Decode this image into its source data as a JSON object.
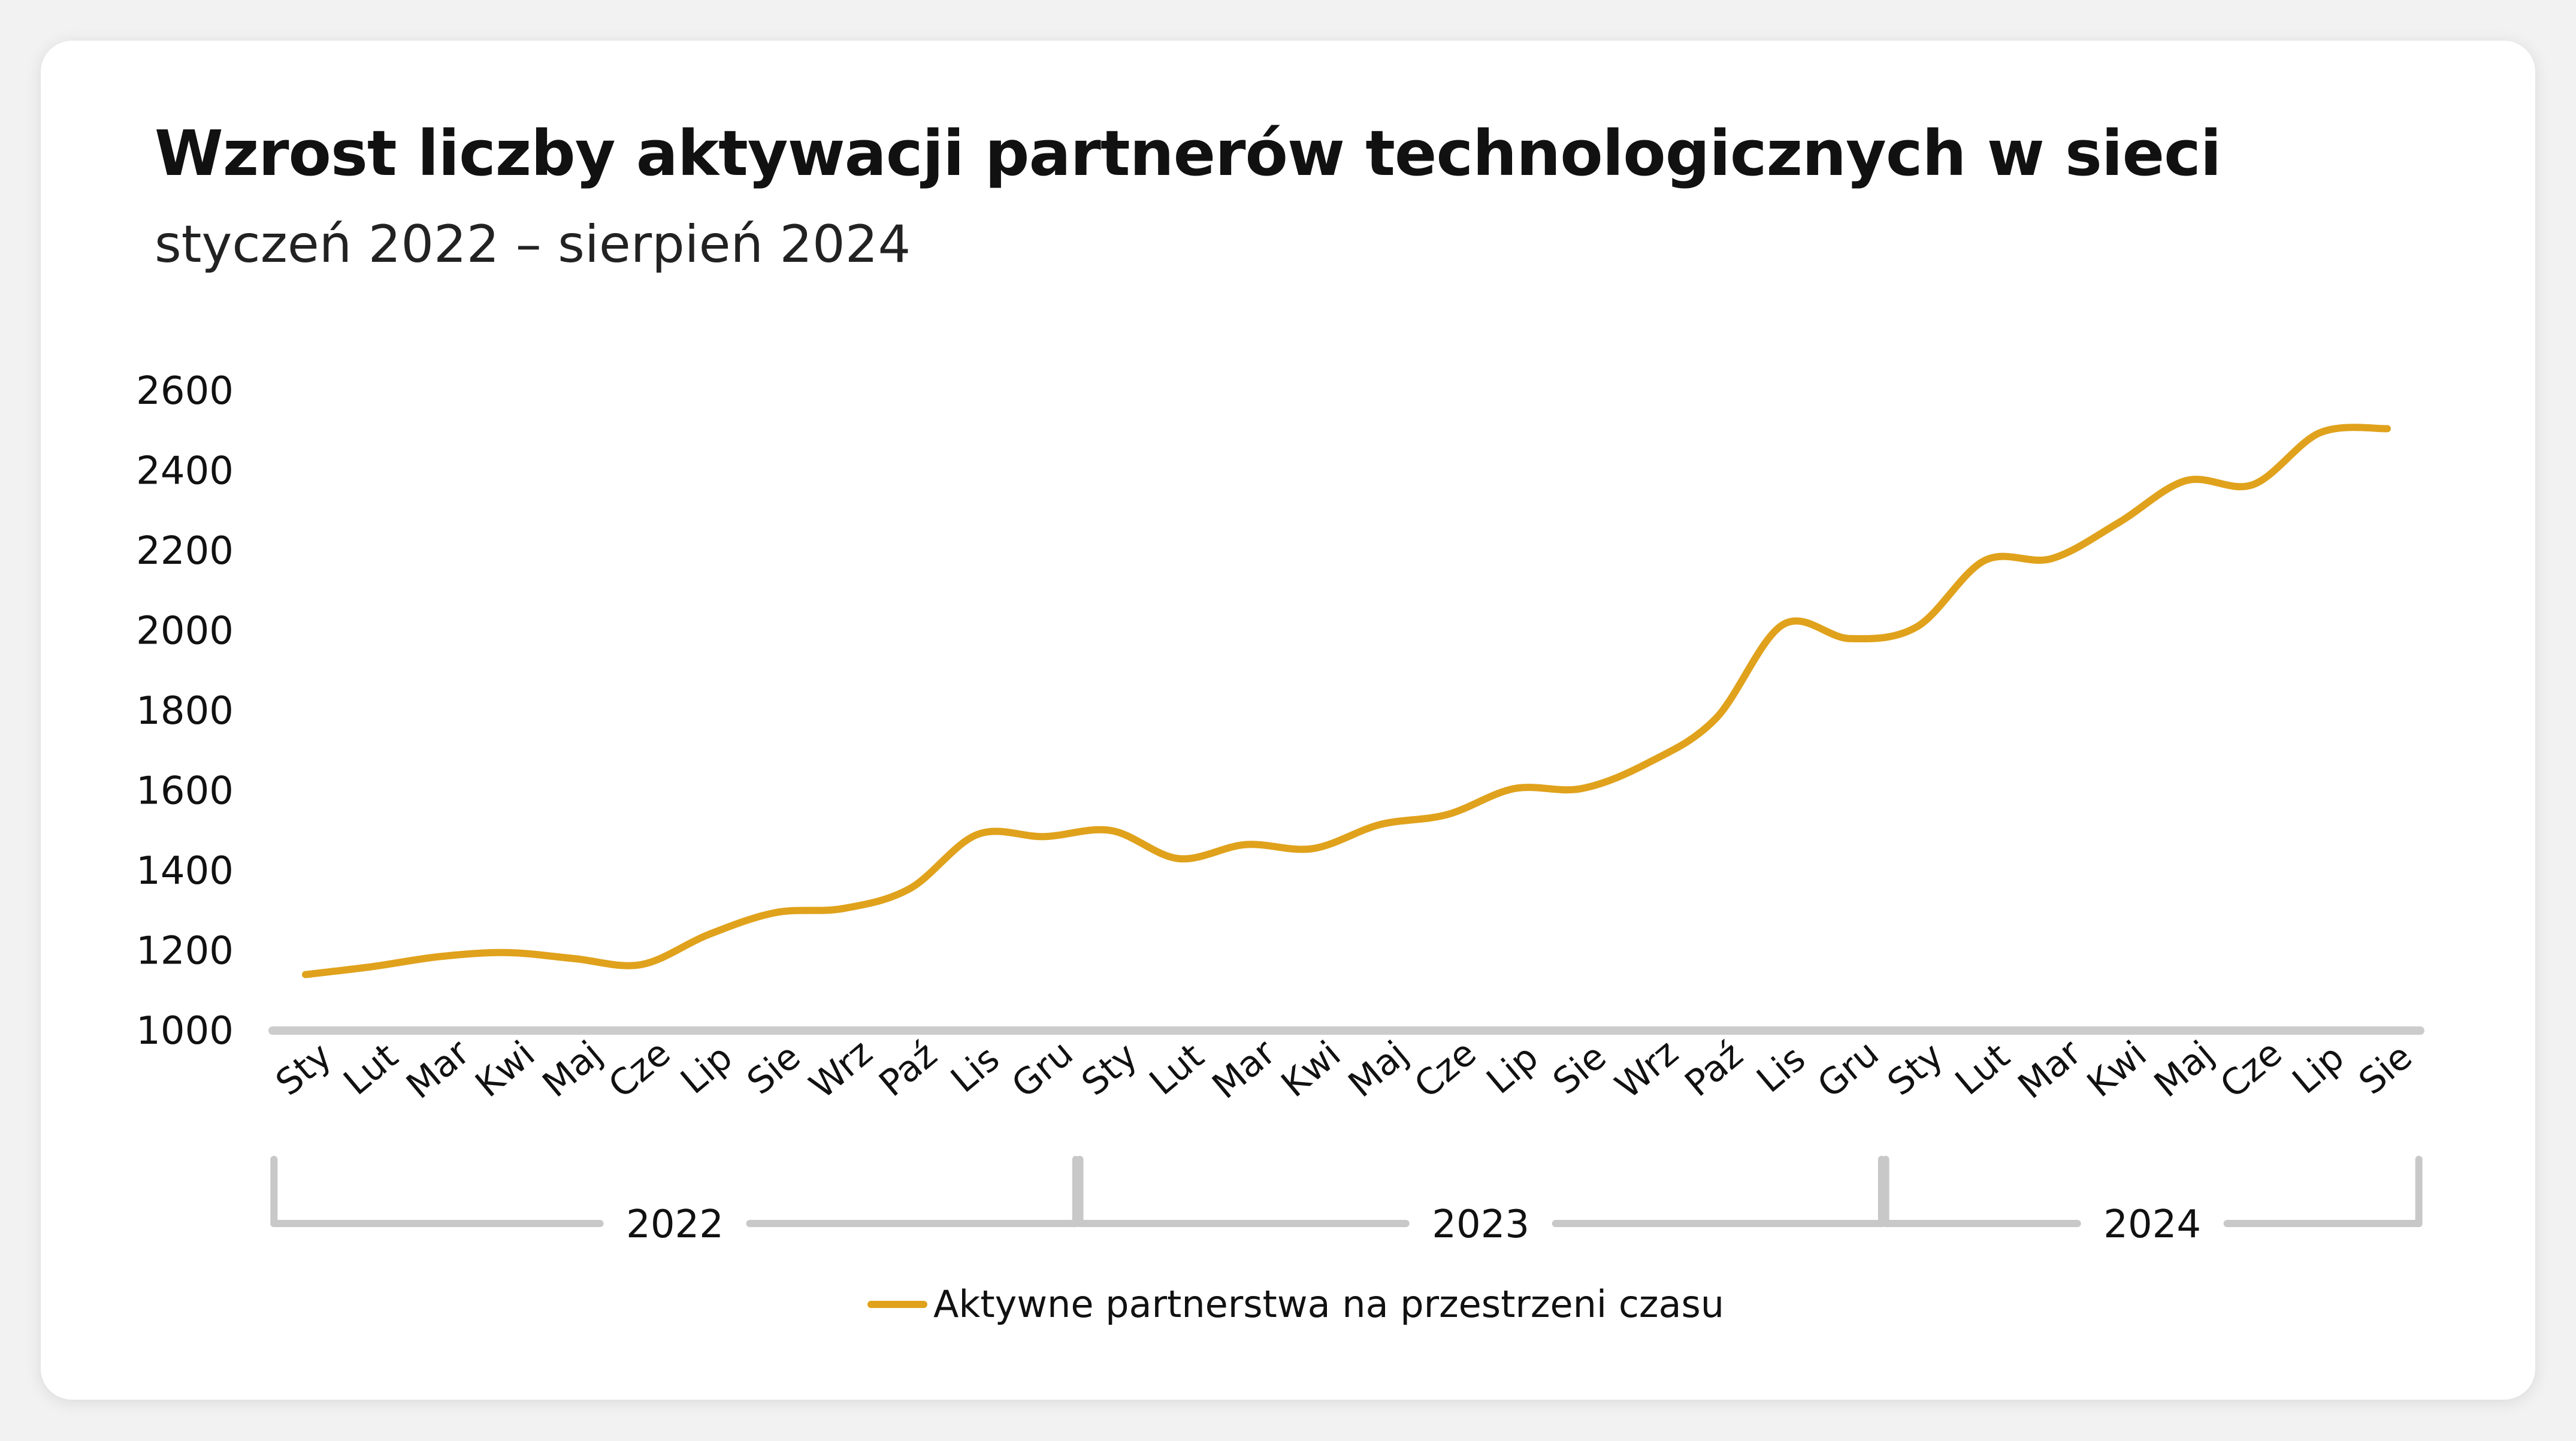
{
  "chart_data": {
    "type": "line",
    "title": "Wzrost liczby aktywacji partnerów technologicznych w sieci",
    "subtitle": "styczeń 2022 – sierpień 2024",
    "categories": [
      "Sty",
      "Lut",
      "Mar",
      "Kwi",
      "Maj",
      "Cze",
      "Lip",
      "Sie",
      "Wrz",
      "Paź",
      "Lis",
      "Gru",
      "Sty",
      "Lut",
      "Mar",
      "Kwi",
      "Maj",
      "Cze",
      "Lip",
      "Sie",
      "Wrz",
      "Paź",
      "Lis",
      "Gru",
      "Sty",
      "Lut",
      "Mar",
      "Kwi",
      "Maj",
      "Cze",
      "Lip",
      "Sie"
    ],
    "groups": [
      {
        "label": "2022",
        "start": 0,
        "end": 11
      },
      {
        "label": "2023",
        "start": 12,
        "end": 23
      },
      {
        "label": "2024",
        "start": 24,
        "end": 31
      }
    ],
    "series": [
      {
        "name": "Aktywne partnerstwa na przestrzeni czasu",
        "color": "#e0a21c",
        "values": [
          1140,
          1160,
          1185,
          1195,
          1180,
          1165,
          1240,
          1295,
          1305,
          1355,
          1490,
          1485,
          1500,
          1430,
          1465,
          1455,
          1515,
          1540,
          1605,
          1605,
          1670,
          1780,
          2015,
          1980,
          2010,
          2175,
          2180,
          2270,
          2375,
          2365,
          2495,
          2505
        ]
      }
    ],
    "yticks": [
      1000,
      1200,
      1400,
      1600,
      1800,
      2000,
      2200,
      2400,
      2600
    ],
    "ylim": [
      1000,
      2600
    ],
    "grid": false,
    "legend": "bottom-center"
  }
}
